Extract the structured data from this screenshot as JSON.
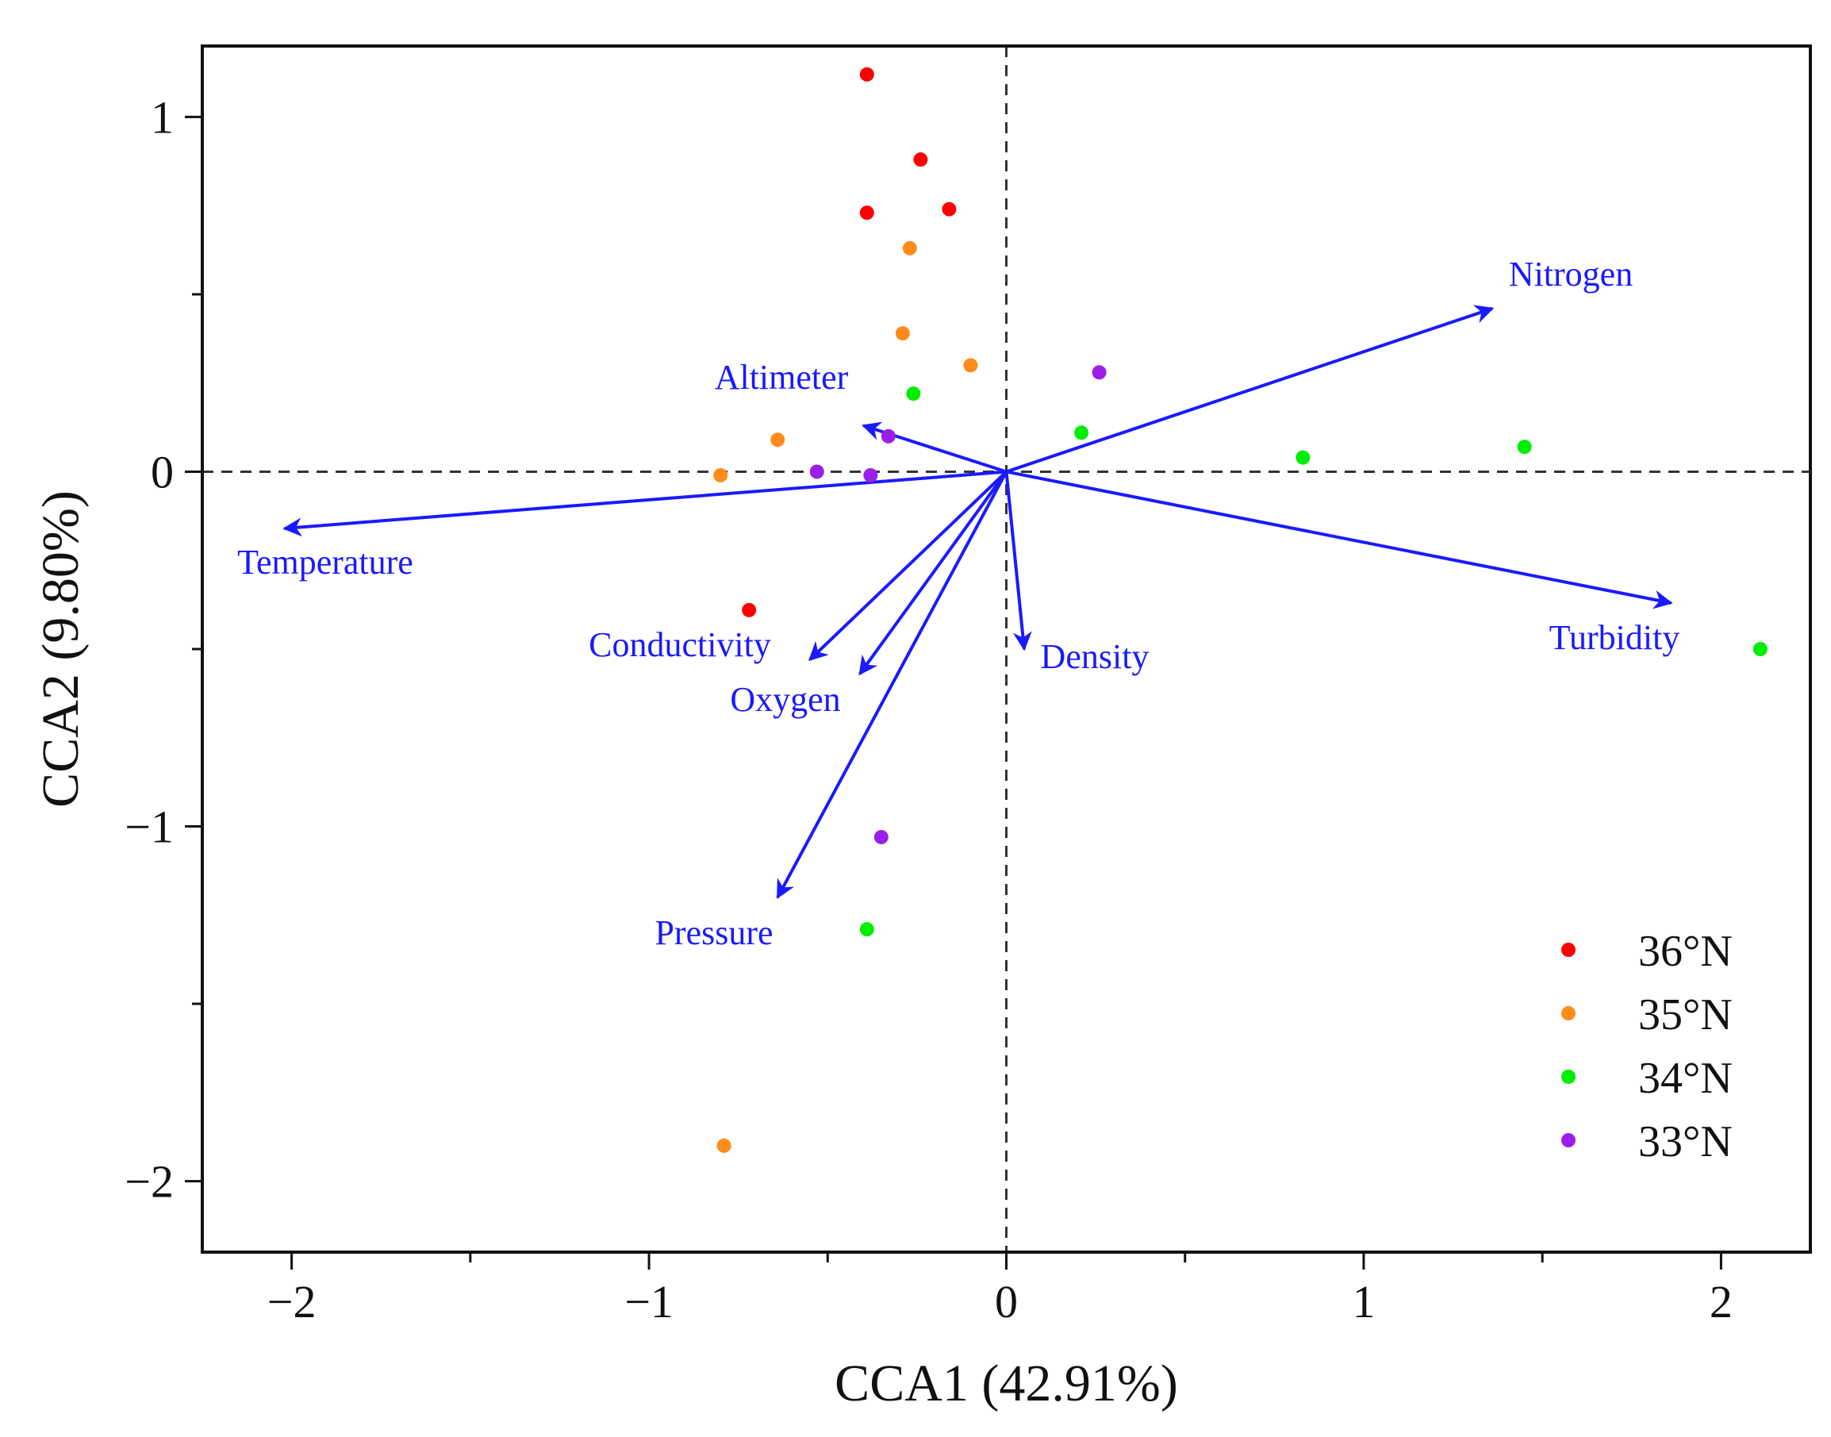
{
  "chart_data": {
    "type": "scatter",
    "title": "",
    "xlabel": "CCA1 (42.91%)",
    "ylabel": "CCA2 (9.80%)",
    "xlim": [
      -2.25,
      2.25
    ],
    "ylim": [
      -2.2,
      1.2
    ],
    "x_ticks": [
      -2,
      -1,
      0,
      1,
      2
    ],
    "x_tick_labels": [
      "−2",
      "−1",
      "0",
      "1",
      "2"
    ],
    "y_ticks": [
      -2,
      -1,
      0,
      1
    ],
    "y_tick_labels": [
      "−2",
      "−1",
      "0",
      "1"
    ],
    "legend_position": "bottom-right",
    "series": [
      {
        "name": "36°N",
        "color": "#ff0000",
        "points": [
          [
            -0.39,
            1.12
          ],
          [
            -0.24,
            0.88
          ],
          [
            -0.39,
            0.73
          ],
          [
            -0.16,
            0.74
          ],
          [
            -0.72,
            -0.39
          ]
        ]
      },
      {
        "name": "35°N",
        "color": "#ff8c1a",
        "points": [
          [
            -0.27,
            0.63
          ],
          [
            -0.29,
            0.39
          ],
          [
            -0.1,
            0.3
          ],
          [
            -0.64,
            0.09
          ],
          [
            -0.8,
            -0.01
          ],
          [
            -0.79,
            -1.9
          ]
        ]
      },
      {
        "name": "34°N",
        "color": "#00ee00",
        "points": [
          [
            -0.26,
            0.22
          ],
          [
            0.21,
            0.11
          ],
          [
            0.83,
            0.04
          ],
          [
            1.45,
            0.07
          ],
          [
            2.11,
            -0.5
          ],
          [
            -0.39,
            -1.29
          ]
        ]
      },
      {
        "name": "33°N",
        "color": "#9b1fe8",
        "points": [
          [
            0.26,
            0.28
          ],
          [
            -0.33,
            0.1
          ],
          [
            -0.53,
            0.0
          ],
          [
            -0.38,
            -0.01
          ],
          [
            -0.35,
            -1.03
          ]
        ]
      }
    ],
    "vectors": {
      "color": "#1a1aff",
      "items": [
        {
          "label": "Nitrogen",
          "x": 1.36,
          "y": 0.46
        },
        {
          "label": "Altimeter",
          "x": -0.4,
          "y": 0.13
        },
        {
          "label": "Temperature",
          "x": -2.02,
          "y": -0.16
        },
        {
          "label": "Turbidity",
          "x": 1.86,
          "y": -0.37
        },
        {
          "label": "Conductivity",
          "x": -0.55,
          "y": -0.53
        },
        {
          "label": "Oxygen",
          "x": -0.41,
          "y": -0.57
        },
        {
          "label": "Density",
          "x": 0.05,
          "y": -0.5
        },
        {
          "label": "Pressure",
          "x": -0.64,
          "y": -1.2
        }
      ]
    }
  }
}
